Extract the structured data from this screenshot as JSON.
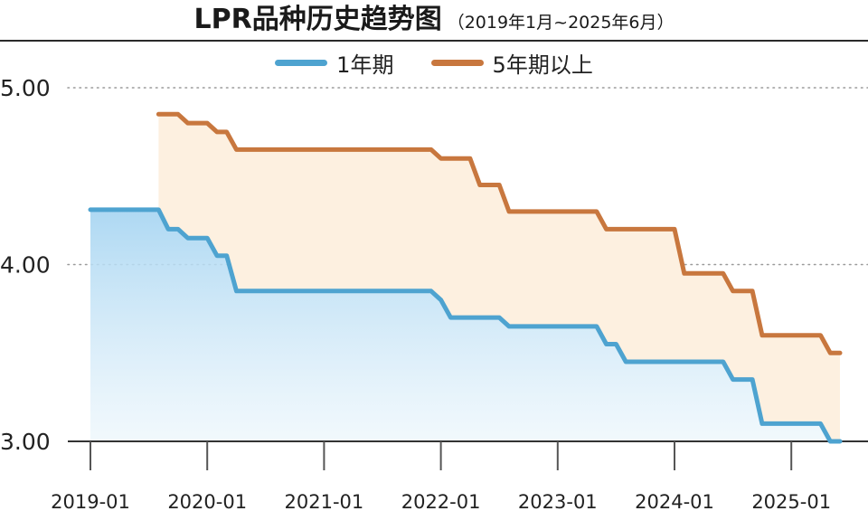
{
  "chart_data": {
    "type": "line",
    "title": "LPR品种历史趋势图",
    "subtitle": "（2019年1月~2025年6月）",
    "x_ticks": [
      "2019-01",
      "2020-01",
      "2021-01",
      "2022-01",
      "2023-01",
      "2024-01",
      "2025-01"
    ],
    "y_ticks": [
      "3.00",
      "4.00",
      "5.00"
    ],
    "ylim": [
      3.0,
      5.0
    ],
    "xlim": [
      "2019-01",
      "2025-06"
    ],
    "grid": "horizontal dotted",
    "legend_position": "top-center",
    "series": [
      {
        "name": "1年期",
        "color": "#4ea3d0",
        "points": [
          [
            "2019-01",
            4.31
          ],
          [
            "2019-08",
            4.31
          ],
          [
            "2019-09",
            4.2
          ],
          [
            "2019-10",
            4.2
          ],
          [
            "2019-11",
            4.15
          ],
          [
            "2020-01",
            4.15
          ],
          [
            "2020-02",
            4.05
          ],
          [
            "2020-03",
            4.05
          ],
          [
            "2020-04",
            3.85
          ],
          [
            "2021-12",
            3.85
          ],
          [
            "2022-01",
            3.8
          ],
          [
            "2022-02",
            3.7
          ],
          [
            "2022-07",
            3.7
          ],
          [
            "2022-08",
            3.65
          ],
          [
            "2023-05",
            3.65
          ],
          [
            "2023-06",
            3.55
          ],
          [
            "2023-07",
            3.55
          ],
          [
            "2023-08",
            3.45
          ],
          [
            "2024-06",
            3.45
          ],
          [
            "2024-07",
            3.35
          ],
          [
            "2024-09",
            3.35
          ],
          [
            "2024-10",
            3.1
          ],
          [
            "2025-04",
            3.1
          ],
          [
            "2025-05",
            3.0
          ],
          [
            "2025-06",
            3.0
          ]
        ]
      },
      {
        "name": "5年期以上",
        "color": "#c8773e",
        "points": [
          [
            "2019-08",
            4.85
          ],
          [
            "2019-10",
            4.85
          ],
          [
            "2019-11",
            4.8
          ],
          [
            "2020-01",
            4.8
          ],
          [
            "2020-02",
            4.75
          ],
          [
            "2020-03",
            4.75
          ],
          [
            "2020-04",
            4.65
          ],
          [
            "2021-12",
            4.65
          ],
          [
            "2022-01",
            4.6
          ],
          [
            "2022-04",
            4.6
          ],
          [
            "2022-05",
            4.45
          ],
          [
            "2022-07",
            4.45
          ],
          [
            "2022-08",
            4.3
          ],
          [
            "2023-05",
            4.3
          ],
          [
            "2023-06",
            4.2
          ],
          [
            "2024-01",
            4.2
          ],
          [
            "2024-02",
            3.95
          ],
          [
            "2024-06",
            3.95
          ],
          [
            "2024-07",
            3.85
          ],
          [
            "2024-09",
            3.85
          ],
          [
            "2024-10",
            3.6
          ],
          [
            "2025-04",
            3.6
          ],
          [
            "2025-05",
            3.5
          ],
          [
            "2025-06",
            3.5
          ]
        ]
      }
    ]
  }
}
